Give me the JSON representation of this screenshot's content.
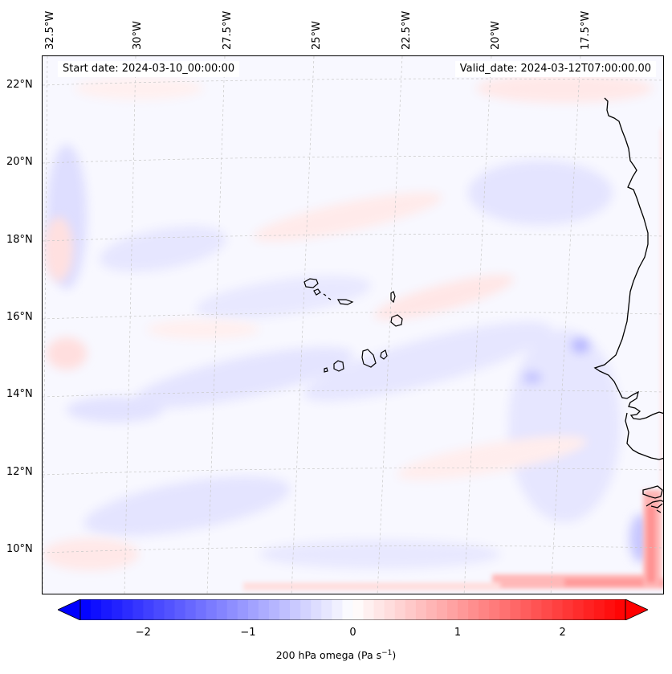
{
  "map": {
    "title_left_prefix": "Start date: ",
    "start_date": "2024-03-10_00:00:00",
    "title_right_prefix": "Valid_date: ",
    "valid_date": "2024-03-12T07:00:00.00",
    "lon_labels": [
      "32.5°W",
      "30°W",
      "27.5°W",
      "25°W",
      "22.5°W",
      "20°W",
      "17.5°W"
    ],
    "lat_labels": [
      "22°N",
      "20°N",
      "18°N",
      "16°N",
      "14°N",
      "12°N",
      "10°N"
    ],
    "features": [
      "Cape Verde islands",
      "West African coastline (Mauritania, Senegal, Gambia, Guinea-Bissau)"
    ]
  },
  "colorbar": {
    "label": "200 hPa omega (Pa s",
    "label_exp": "−1",
    "label_close": ")",
    "ticks": [
      "−2",
      "−1",
      "0",
      "1",
      "2"
    ],
    "tick_values": [
      -2,
      -1,
      0,
      1,
      2
    ],
    "range": [
      -2.6,
      2.6
    ],
    "colormap": "bwr",
    "extend": "both",
    "colors": {
      "min": "#0000ff",
      "mid": "#ffffff",
      "max": "#ff0000"
    }
  }
}
